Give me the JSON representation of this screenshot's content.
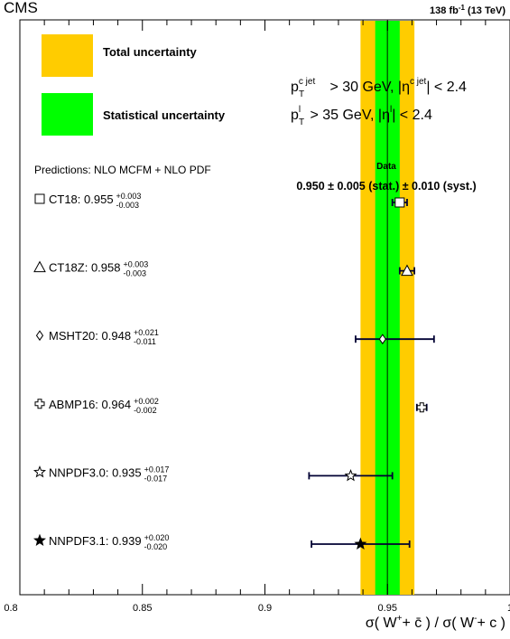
{
  "header": {
    "experiment": "CMS",
    "lumi": "138 fb",
    "lumi_sup": "-1",
    "energy": " (13 TeV)"
  },
  "legend": {
    "total": "Total uncertainty",
    "statistical": "Statistical uncertainty"
  },
  "cuts": {
    "line1": {
      "p": "p",
      "sup": "c jet",
      "sub": "T",
      "rest1": " > 30 GeV, |η",
      "eta_sup": "c jet",
      "rest2": "| < 2.4"
    },
    "line2": {
      "p": "p",
      "sup": "l",
      "sub": "T",
      "rest1": " > 35 GeV, |η",
      "eta_sup": "l",
      "rest2": "| < 2.4"
    }
  },
  "predictions_header": "Predictions: NLO MCFM + NLO PDF",
  "data_label": "Data",
  "data_value": "0.950 ± 0.005 (stat.) ± 0.010 (syst.)",
  "axis": {
    "xlabel": "σ( W⁺+ c̄ ) / σ( W⁻+ c )"
  },
  "colors": {
    "total_band": "#ffcc00",
    "stat_band": "#00ff00",
    "data_line": "#006400",
    "errorbar": "#000033"
  },
  "chart_data": {
    "type": "scatter",
    "title": "",
    "xlabel": "σ( W⁺+ c̄ ) / σ( W⁻+ c )",
    "ylabel": "",
    "xlim": [
      0.8,
      1.0
    ],
    "x_ticks": [
      "0.8",
      "0.85",
      "0.9",
      "0.95",
      "1"
    ],
    "data_measurement": {
      "value": 0.95,
      "stat": 0.005,
      "syst": 0.01,
      "total": 0.011
    },
    "series": [
      {
        "name": "CT18",
        "marker": "square",
        "value": 0.955,
        "err_up": 0.003,
        "err_down": 0.003,
        "label_main": "CT18: 0.955",
        "label_up": "+0.003",
        "label_down": "-0.003"
      },
      {
        "name": "CT18Z",
        "marker": "triangle",
        "value": 0.958,
        "err_up": 0.003,
        "err_down": 0.003,
        "label_main": "CT18Z: 0.958",
        "label_up": "+0.003",
        "label_down": "-0.003"
      },
      {
        "name": "MSHT20",
        "marker": "diamond",
        "value": 0.948,
        "err_up": 0.021,
        "err_down": 0.011,
        "label_main": "MSHT20: 0.948",
        "label_up": "+0.021",
        "label_down": "-0.011"
      },
      {
        "name": "ABMP16",
        "marker": "cross",
        "value": 0.964,
        "err_up": 0.002,
        "err_down": 0.002,
        "label_main": "ABMP16: 0.964",
        "label_up": "+0.002",
        "label_down": "-0.002"
      },
      {
        "name": "NNPDF3.0",
        "marker": "open-star",
        "value": 0.935,
        "err_up": 0.017,
        "err_down": 0.017,
        "label_main": "NNPDF3.0: 0.935",
        "label_up": "+0.017",
        "label_down": "-0.017"
      },
      {
        "name": "NNPDF3.1",
        "marker": "filled-star",
        "value": 0.939,
        "err_up": 0.02,
        "err_down": 0.02,
        "label_main": "NNPDF3.1: 0.939",
        "label_up": "+0.020",
        "label_down": "-0.020"
      }
    ]
  }
}
